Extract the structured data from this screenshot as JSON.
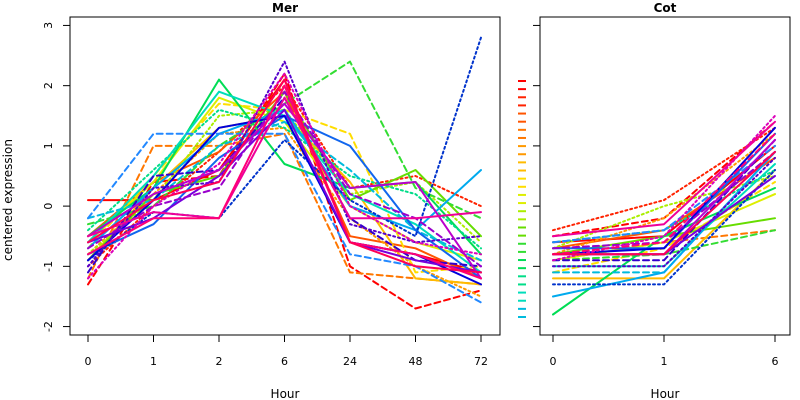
{
  "figure": {
    "ylabel": "centered expression"
  },
  "chart_data": [
    {
      "type": "line",
      "title": "Mer",
      "xlabel": "Hour",
      "ylabel": "centered expression",
      "categories": [
        "0",
        "1",
        "2",
        "6",
        "24",
        "48",
        "72"
      ],
      "ylim": [
        -2,
        3
      ],
      "yticks": [
        -2,
        -1,
        0,
        1,
        2,
        3
      ],
      "grid": false,
      "series": [
        {
          "color": "#ff0000",
          "dash": "solid",
          "values": [
            0.1,
            0.1,
            0.6,
            2.1,
            -0.6,
            -0.8,
            -1.1
          ]
        },
        {
          "color": "#ff0000",
          "dash": "dashed",
          "values": [
            -1.3,
            0.4,
            0.5,
            2.2,
            -1.0,
            -1.7,
            -1.4
          ]
        },
        {
          "color": "#ff2200",
          "dash": "dotted",
          "values": [
            -1.0,
            0.0,
            0.9,
            2.0,
            0.3,
            0.5,
            0.0
          ]
        },
        {
          "color": "#ff5500",
          "dash": "solid",
          "values": [
            -0.5,
            0.4,
            0.9,
            1.9,
            -0.5,
            -0.7,
            -1.2
          ]
        },
        {
          "color": "#ff7700",
          "dash": "dashed",
          "values": [
            -1.2,
            1.0,
            1.0,
            1.2,
            -1.1,
            -1.2,
            -1.3
          ]
        },
        {
          "color": "#ff9900",
          "dash": "dotted",
          "values": [
            -0.8,
            0.2,
            1.2,
            1.3,
            -0.2,
            -1.0,
            -1.5
          ]
        },
        {
          "color": "#ffbb00",
          "dash": "solid",
          "values": [
            -0.9,
            0.3,
            1.3,
            1.5,
            0.4,
            -1.2,
            -1.3
          ]
        },
        {
          "color": "#ffdd00",
          "dash": "dashed",
          "values": [
            -0.7,
            0.5,
            1.7,
            1.6,
            1.2,
            -1.1,
            -1.0
          ]
        },
        {
          "color": "#ddee00",
          "dash": "solid",
          "values": [
            -0.6,
            0.4,
            1.8,
            1.4,
            0.0,
            -0.6,
            -0.9
          ]
        },
        {
          "color": "#aaee00",
          "dash": "dotted",
          "values": [
            -0.8,
            0.1,
            1.5,
            1.6,
            0.2,
            0.4,
            -0.6
          ]
        },
        {
          "color": "#66dd00",
          "dash": "solid",
          "values": [
            -0.9,
            0.2,
            0.5,
            1.9,
            0.1,
            0.6,
            -0.5
          ]
        },
        {
          "color": "#33dd33",
          "dash": "dashed",
          "values": [
            -0.3,
            0.0,
            1.0,
            1.7,
            2.4,
            0.3,
            -0.2
          ]
        },
        {
          "color": "#00dd55",
          "dash": "solid",
          "values": [
            -0.5,
            0.3,
            2.1,
            0.7,
            0.3,
            0.4,
            -0.8
          ]
        },
        {
          "color": "#00dd88",
          "dash": "dotted",
          "values": [
            -0.4,
            0.6,
            1.6,
            1.3,
            0.5,
            0.2,
            -0.7
          ]
        },
        {
          "color": "#00ddbb",
          "dash": "solid",
          "values": [
            -0.6,
            0.5,
            1.9,
            1.5,
            0.2,
            -0.3,
            -1.1
          ]
        },
        {
          "color": "#00bbdd",
          "dash": "dashed",
          "values": [
            -0.2,
            0.1,
            1.0,
            1.4,
            0.6,
            -0.4,
            -0.9
          ]
        },
        {
          "color": "#00aaee",
          "dash": "solid",
          "values": [
            -0.7,
            0.3,
            1.2,
            1.6,
            0.0,
            -0.4,
            0.6
          ]
        },
        {
          "color": "#2288ff",
          "dash": "dashed",
          "values": [
            -0.2,
            1.2,
            1.2,
            1.2,
            -0.8,
            -1.0,
            -1.6
          ]
        },
        {
          "color": "#1166ee",
          "dash": "solid",
          "values": [
            -0.8,
            -0.3,
            0.8,
            1.5,
            1.0,
            -0.4,
            -1.2
          ]
        },
        {
          "color": "#0033cc",
          "dash": "dotted",
          "values": [
            -0.9,
            -0.1,
            -0.2,
            1.1,
            0.1,
            -0.5,
            2.8
          ]
        },
        {
          "color": "#0000dd",
          "dash": "solid",
          "values": [
            -0.9,
            0.1,
            1.3,
            1.5,
            -0.6,
            -0.8,
            -1.3
          ]
        },
        {
          "color": "#3300cc",
          "dash": "dashed",
          "values": [
            -1.1,
            0.5,
            0.6,
            1.8,
            -0.2,
            -0.9,
            -1.0
          ]
        },
        {
          "color": "#5500cc",
          "dash": "dotted",
          "values": [
            -1.0,
            0.3,
            0.4,
            2.4,
            -0.3,
            -0.6,
            -0.5
          ]
        },
        {
          "color": "#7700dd",
          "dash": "solid",
          "values": [
            -0.6,
            -0.2,
            0.5,
            1.6,
            -0.6,
            -0.9,
            -1.1
          ]
        },
        {
          "color": "#9900cc",
          "dash": "dashed",
          "values": [
            -0.7,
            0.0,
            0.3,
            1.9,
            0.2,
            -0.2,
            -1.0
          ]
        },
        {
          "color": "#bb00cc",
          "dash": "solid",
          "values": [
            -0.5,
            0.2,
            0.6,
            1.7,
            0.3,
            0.4,
            -1.2
          ]
        },
        {
          "color": "#dd00bb",
          "dash": "dotted",
          "values": [
            -1.2,
            0.0,
            0.7,
            2.2,
            0.0,
            -0.6,
            -0.8
          ]
        },
        {
          "color": "#ee0099",
          "dash": "solid",
          "values": [
            -0.5,
            -0.1,
            -0.2,
            1.8,
            -0.2,
            -0.2,
            -0.1
          ]
        },
        {
          "color": "#ff0077",
          "dash": "solid",
          "values": [
            -0.8,
            -0.2,
            -0.2,
            2.0,
            -0.6,
            -0.8,
            -1.2
          ]
        },
        {
          "color": "#ff0055",
          "dash": "solid",
          "values": [
            -0.6,
            0.1,
            0.4,
            2.1,
            -0.6,
            -1.0,
            -1.1
          ]
        }
      ]
    },
    {
      "type": "line",
      "title": "Cot",
      "xlabel": "Hour",
      "categories": [
        "0",
        "1",
        "6"
      ],
      "ylim": [
        -2,
        3
      ],
      "grid": false,
      "legend": {
        "position": "left",
        "colors": [
          "#ff0000",
          "#ff2200",
          "#ff5500",
          "#ff7700",
          "#ff9900",
          "#ffbb00",
          "#ffdd00",
          "#ddee00",
          "#aaee00",
          "#66dd00",
          "#33dd33",
          "#00dd55",
          "#00dd88",
          "#00ddbb",
          "#00bbdd"
        ]
      },
      "series": [
        {
          "color": "#ff0000",
          "dash": "solid",
          "values": [
            -0.6,
            -0.5,
            1.0
          ]
        },
        {
          "color": "#ff0000",
          "dash": "dashed",
          "values": [
            -0.5,
            -0.2,
            1.4
          ]
        },
        {
          "color": "#ff2200",
          "dash": "dotted",
          "values": [
            -0.4,
            0.1,
            1.3
          ]
        },
        {
          "color": "#ff5500",
          "dash": "solid",
          "values": [
            -0.7,
            -0.4,
            0.8
          ]
        },
        {
          "color": "#ff7700",
          "dash": "dashed",
          "values": [
            -0.9,
            -0.6,
            -0.4
          ]
        },
        {
          "color": "#ff9900",
          "dash": "dotted",
          "values": [
            -0.8,
            -0.2,
            1.2
          ]
        },
        {
          "color": "#ffbb00",
          "dash": "solid",
          "values": [
            -1.2,
            -1.2,
            0.6
          ]
        },
        {
          "color": "#ffdd00",
          "dash": "dashed",
          "values": [
            -1.1,
            -0.7,
            0.4
          ]
        },
        {
          "color": "#ddee00",
          "dash": "solid",
          "values": [
            -0.9,
            -0.6,
            0.2
          ]
        },
        {
          "color": "#aaee00",
          "dash": "dotted",
          "values": [
            -0.7,
            0.0,
            0.5
          ]
        },
        {
          "color": "#66dd00",
          "dash": "solid",
          "values": [
            -0.8,
            -0.5,
            -0.2
          ]
        },
        {
          "color": "#33dd33",
          "dash": "dashed",
          "values": [
            -0.9,
            -0.8,
            -0.4
          ]
        },
        {
          "color": "#00dd55",
          "dash": "solid",
          "values": [
            -1.8,
            -0.5,
            0.3
          ]
        },
        {
          "color": "#00dd88",
          "dash": "dotted",
          "values": [
            -0.6,
            -0.4,
            0.6
          ]
        },
        {
          "color": "#00ddbb",
          "dash": "solid",
          "values": [
            -1.0,
            -1.0,
            0.7
          ]
        },
        {
          "color": "#00bbdd",
          "dash": "dashed",
          "values": [
            -1.1,
            -1.1,
            0.9
          ]
        },
        {
          "color": "#00aaee",
          "dash": "solid",
          "values": [
            -1.5,
            -1.1,
            0.9
          ]
        },
        {
          "color": "#2288ff",
          "dash": "dashed",
          "values": [
            -0.6,
            -0.4,
            1.0
          ]
        },
        {
          "color": "#1166ee",
          "dash": "solid",
          "values": [
            -0.7,
            -0.7,
            1.2
          ]
        },
        {
          "color": "#0033cc",
          "dash": "dotted",
          "values": [
            -1.3,
            -1.3,
            0.6
          ]
        },
        {
          "color": "#0000dd",
          "dash": "solid",
          "values": [
            -0.8,
            -0.7,
            1.3
          ]
        },
        {
          "color": "#3300cc",
          "dash": "dashed",
          "values": [
            -0.9,
            -0.9,
            1.1
          ]
        },
        {
          "color": "#5500cc",
          "dash": "dotted",
          "values": [
            -1.0,
            -1.0,
            0.8
          ]
        },
        {
          "color": "#7700dd",
          "dash": "solid",
          "values": [
            -0.8,
            -0.8,
            0.5
          ]
        },
        {
          "color": "#9900cc",
          "dash": "dashed",
          "values": [
            -0.7,
            -0.6,
            0.9
          ]
        },
        {
          "color": "#bb00cc",
          "dash": "solid",
          "values": [
            -0.8,
            -0.8,
            1.1
          ]
        },
        {
          "color": "#dd00bb",
          "dash": "dotted",
          "values": [
            -0.9,
            -0.5,
            1.5
          ]
        },
        {
          "color": "#ee0099",
          "dash": "solid",
          "values": [
            -0.5,
            -0.3,
            1.4
          ]
        },
        {
          "color": "#ff0077",
          "dash": "dashed",
          "values": [
            -0.8,
            -0.6,
            1.2
          ]
        },
        {
          "color": "#ff0055",
          "dash": "solid",
          "values": [
            -0.8,
            -0.8,
            0.9
          ]
        }
      ]
    }
  ]
}
